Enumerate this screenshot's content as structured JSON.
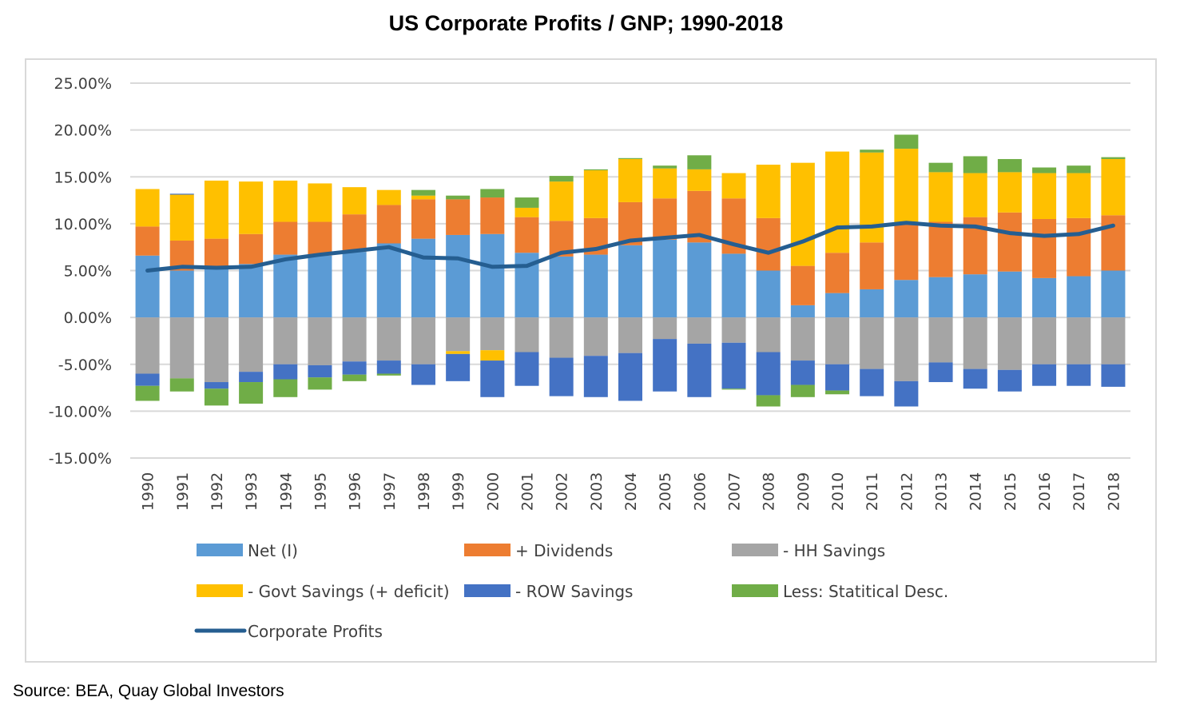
{
  "chart_data": {
    "type": "bar",
    "stacked": true,
    "title": "US Corporate Profits / GNP; 1990-2018",
    "xlabel": "",
    "ylabel": "",
    "ylim": [
      -15,
      25
    ],
    "yticks": [
      "25.00%",
      "20.00%",
      "15.00%",
      "10.00%",
      "5.00%",
      "0.00%",
      "-5.00%",
      "-10.00%",
      "-15.00%"
    ],
    "ytick_values": [
      25,
      20,
      15,
      10,
      5,
      0,
      -5,
      -10,
      -15
    ],
    "grid": true,
    "legend_position": "bottom",
    "categories": [
      "1990",
      "1991",
      "1992",
      "1993",
      "1994",
      "1995",
      "1996",
      "1997",
      "1998",
      "1999",
      "2000",
      "2001",
      "2002",
      "2003",
      "2004",
      "2005",
      "2006",
      "2007",
      "2008",
      "2009",
      "2010",
      "2011",
      "2012",
      "2013",
      "2014",
      "2015",
      "2016",
      "2017",
      "2018"
    ],
    "series": [
      {
        "name": "Net (I)",
        "type": "bar",
        "color": "#5B9BD5",
        "values": [
          6.6,
          5.0,
          5.5,
          5.7,
          6.7,
          6.6,
          7.0,
          7.9,
          8.4,
          8.8,
          8.9,
          6.9,
          6.5,
          6.7,
          7.7,
          8.3,
          8.0,
          6.8,
          5.0,
          1.3,
          2.6,
          3.0,
          4.0,
          4.3,
          4.6,
          4.9,
          4.2,
          4.4,
          5.0
        ]
      },
      {
        "name": "+ Dividends",
        "type": "bar",
        "color": "#ED7D31",
        "values": [
          3.1,
          3.2,
          2.9,
          3.2,
          3.5,
          3.6,
          4.0,
          4.1,
          4.2,
          3.8,
          3.9,
          3.8,
          3.8,
          3.9,
          4.6,
          4.4,
          5.5,
          5.9,
          5.6,
          4.2,
          4.3,
          5.0,
          6.0,
          5.9,
          6.1,
          6.3,
          6.3,
          6.2,
          5.9
        ]
      },
      {
        "name": "- HH Savings",
        "type": "bar",
        "color": "#A5A5A5",
        "values": [
          -6.0,
          -6.5,
          -6.9,
          -5.8,
          -5.0,
          -5.1,
          -4.7,
          -4.6,
          -5.0,
          -3.6,
          -3.5,
          -3.7,
          -4.3,
          -4.1,
          -3.8,
          -2.3,
          -2.8,
          -2.7,
          -3.7,
          -4.6,
          -5.0,
          -5.5,
          -6.8,
          -4.8,
          -5.5,
          -5.6,
          -5.0,
          -5.0,
          -5.0
        ]
      },
      {
        "name": "- Govt Savings (+ deficit)",
        "type": "bar",
        "color": "#FFC000",
        "values": [
          4.0,
          4.9,
          6.2,
          5.6,
          4.4,
          4.1,
          2.9,
          1.6,
          0.4,
          -0.3,
          -1.1,
          1.0,
          4.2,
          5.1,
          4.6,
          3.2,
          2.3,
          2.7,
          5.7,
          11.0,
          10.8,
          9.6,
          8.0,
          5.3,
          4.7,
          4.3,
          4.9,
          4.8,
          6.0
        ]
      },
      {
        "name": "- ROW Savings",
        "type": "bar",
        "color": "#4472C4",
        "values": [
          -1.3,
          0.1,
          -0.7,
          -1.1,
          -1.6,
          -1.3,
          -1.4,
          -1.4,
          -2.2,
          -2.9,
          -3.9,
          -3.6,
          -4.1,
          -4.4,
          -5.1,
          -5.6,
          -5.7,
          -4.9,
          -4.6,
          -2.6,
          -2.8,
          -2.9,
          -2.7,
          -2.1,
          -2.1,
          -2.3,
          -2.3,
          -2.3,
          -2.4
        ]
      },
      {
        "name": "Less: Statitical Desc.",
        "type": "bar",
        "color": "#70AD47",
        "values": [
          -1.6,
          -1.4,
          -1.8,
          -2.3,
          -1.9,
          -1.3,
          -0.7,
          -0.2,
          0.6,
          0.4,
          0.9,
          1.1,
          0.6,
          0.1,
          0.1,
          0.3,
          1.5,
          -0.1,
          -1.2,
          -1.3,
          -0.4,
          0.3,
          1.5,
          1.0,
          1.8,
          1.4,
          0.6,
          0.8,
          0.2
        ]
      },
      {
        "name": "Corporate Profits",
        "type": "line",
        "color": "#255E91",
        "values": [
          5.0,
          5.4,
          5.3,
          5.4,
          6.2,
          6.7,
          7.1,
          7.5,
          6.4,
          6.3,
          5.4,
          5.5,
          6.9,
          7.3,
          8.2,
          8.5,
          8.8,
          7.8,
          6.9,
          8.1,
          9.6,
          9.7,
          10.1,
          9.8,
          9.7,
          9.0,
          8.7,
          8.9,
          9.8
        ]
      }
    ]
  },
  "source": "Source: BEA, Quay Global Investors",
  "colors": {
    "grid": "#d9d9d9",
    "frame": "#d9d9d9"
  }
}
